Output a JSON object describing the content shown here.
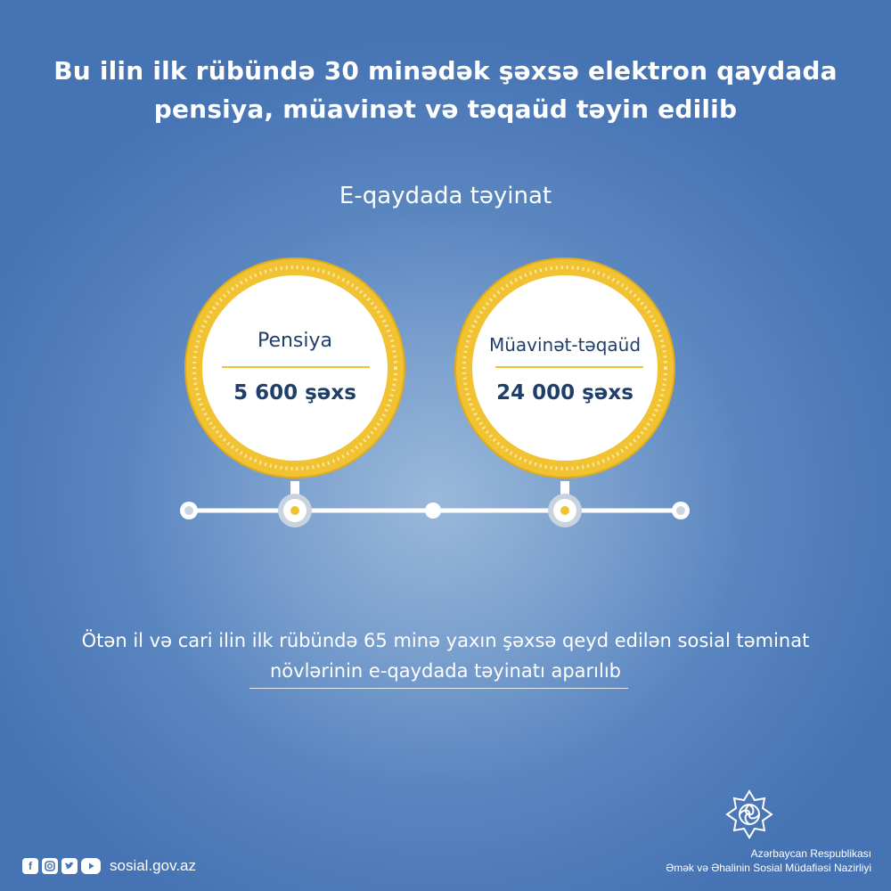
{
  "headline": {
    "line1": "Bu ilin ilk rübündə 30 minədək şəxsə elektron qaydada",
    "line2": "pensiya, müavinət və təqaüd təyin edilib"
  },
  "subheading": "E-qaydada təyinat",
  "items": [
    {
      "label": "Pensiya",
      "value": "5 600 şəxs"
    },
    {
      "label": "Müavinət-təqaüd",
      "value": "24 000 şəxs"
    }
  ],
  "note": {
    "line1": "Ötən il və cari ilin ilk rübündə 65 minə yaxın şəxsə qeyd edilən sosial təminat",
    "line2": "növlərinin e-qaydada təyinatı aparılıb"
  },
  "footer": {
    "social_icons": [
      "facebook-icon",
      "instagram-icon",
      "twitter-icon",
      "youtube-icon"
    ],
    "website": "sosial.gov.az",
    "org_line1": "Azərbaycan Respublikası",
    "org_line2": "Əmək və Əhalinin Sosial Müdafiəsi Nazirliyi"
  },
  "colors": {
    "background": "#4673b3",
    "accent_gold": "#f1c232",
    "text_dark": "#1f3f6a",
    "text_light": "#ffffff"
  }
}
